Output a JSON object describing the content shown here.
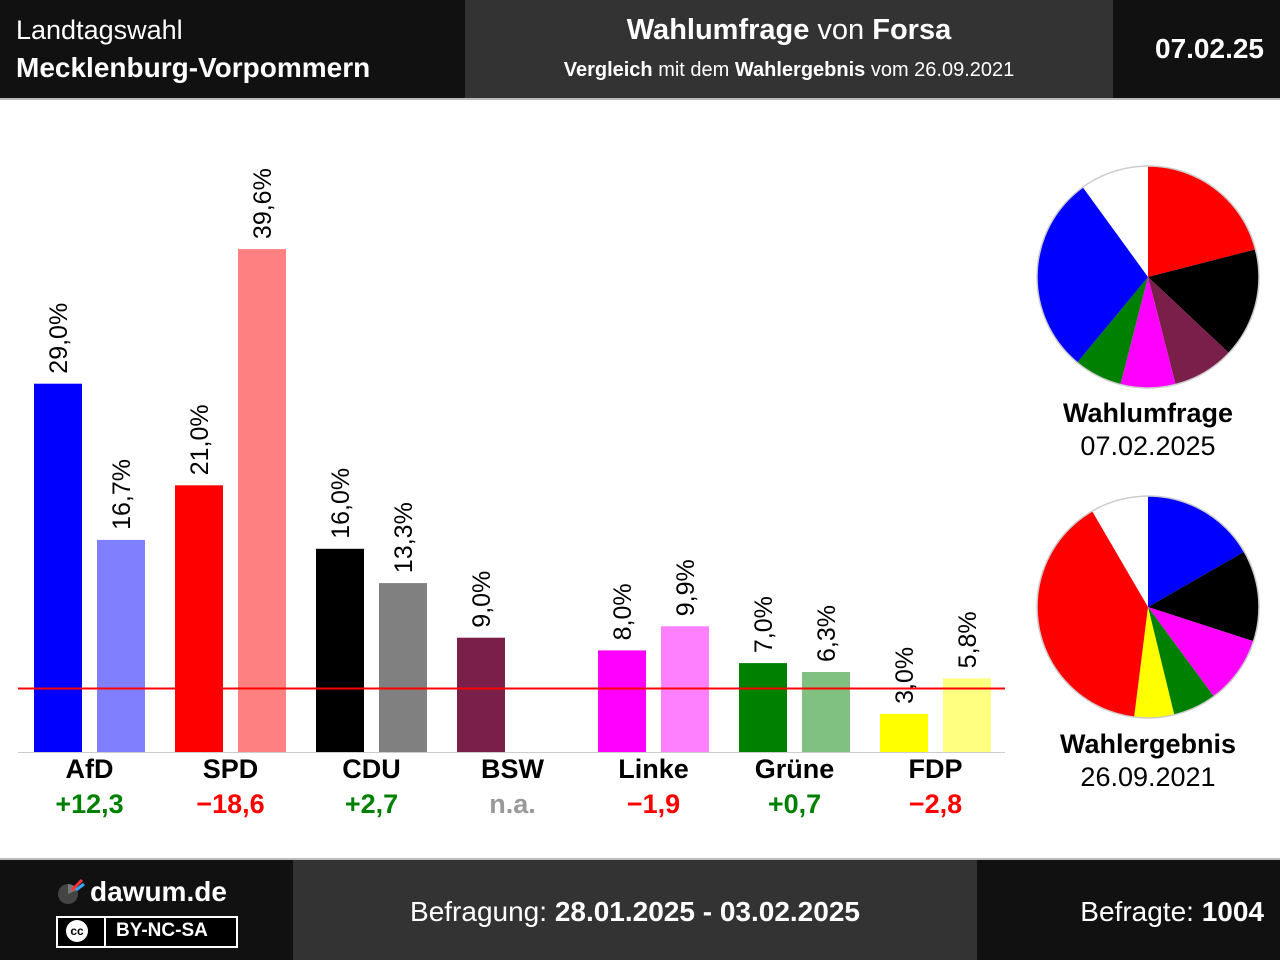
{
  "header": {
    "title_line1": "Landtagswahl",
    "title_line2": "Mecklenburg-Vorpommern",
    "sub_bold1": "Wahlumfrage",
    "sub_plain1": " von ",
    "sub_bold2": "Forsa",
    "sub2_bold1": "Vergleich",
    "sub2_plain1": " mit dem ",
    "sub2_bold2": "Wahlergebnis",
    "sub2_plain2": " vom 26.09.2021",
    "date": "07.02.25"
  },
  "chart_data": {
    "type": "bar",
    "categories": [
      "AfD",
      "SPD",
      "CDU",
      "BSW",
      "Linke",
      "Grüne",
      "FDP"
    ],
    "series": [
      {
        "name": "Wahlumfrage",
        "values": [
          29.0,
          21.0,
          16.0,
          9.0,
          8.0,
          7.0,
          3.0
        ],
        "labels": [
          "29,0%",
          "21,0%",
          "16,0%",
          "9,0%",
          "8,0%",
          "7,0%",
          "3,0%"
        ]
      },
      {
        "name": "Wahlergebnis",
        "values": [
          16.7,
          39.6,
          13.3,
          null,
          9.9,
          6.3,
          5.8
        ],
        "labels": [
          "16,7%",
          "39,6%",
          "13,3%",
          "",
          "9,9%",
          "6,3%",
          "5,8%"
        ]
      }
    ],
    "differences": [
      "+12,3",
      "−18,6",
      "+2,7",
      "n.a.",
      "−1,9",
      "+0,7",
      "−2,8"
    ],
    "threshold": 5,
    "colors": {
      "poll": [
        "#0000ff",
        "#ff0000",
        "#000000",
        "#7a1f4a",
        "#ff00ff",
        "#008000",
        "#ffff00"
      ],
      "result": [
        "#8080ff",
        "#ff8080",
        "#808080",
        "#bc8fa4",
        "#ff80ff",
        "#80c080",
        "#ffff80"
      ],
      "diff_positive": "#008000",
      "diff_negative": "#ff0000",
      "diff_na": "#999999",
      "threshold_line": "#ff0000"
    },
    "ylim": [
      0,
      40
    ]
  },
  "pies": [
    {
      "title": "Wahlumfrage",
      "date": "07.02.2025",
      "slices": [
        {
          "party": "SPD",
          "value": 21.0,
          "color": "#ff0000"
        },
        {
          "party": "CDU",
          "value": 16.0,
          "color": "#000000"
        },
        {
          "party": "BSW",
          "value": 9.0,
          "color": "#7a1f4a"
        },
        {
          "party": "Linke",
          "value": 8.0,
          "color": "#ff00ff"
        },
        {
          "party": "Grüne",
          "value": 7.0,
          "color": "#008000"
        },
        {
          "party": "AfD",
          "value": 29.0,
          "color": "#0000ff"
        }
      ]
    },
    {
      "title": "Wahlergebnis",
      "date": "26.09.2021",
      "slices": [
        {
          "party": "AfD",
          "value": 16.7,
          "color": "#0000ff"
        },
        {
          "party": "CDU",
          "value": 13.3,
          "color": "#000000"
        },
        {
          "party": "Linke",
          "value": 9.9,
          "color": "#ff00ff"
        },
        {
          "party": "Grüne",
          "value": 6.3,
          "color": "#008000"
        },
        {
          "party": "FDP",
          "value": 5.8,
          "color": "#ffff00"
        },
        {
          "party": "SPD",
          "value": 39.6,
          "color": "#ff0000"
        }
      ]
    }
  ],
  "footer": {
    "site": "dawum.de",
    "license": "BY-NC-SA",
    "license_icon": "cc",
    "poll_label": "Befragung: ",
    "poll_period": "28.01.2025 - 03.02.2025",
    "respondents_label": "Befragte: ",
    "respondents": "1004"
  }
}
